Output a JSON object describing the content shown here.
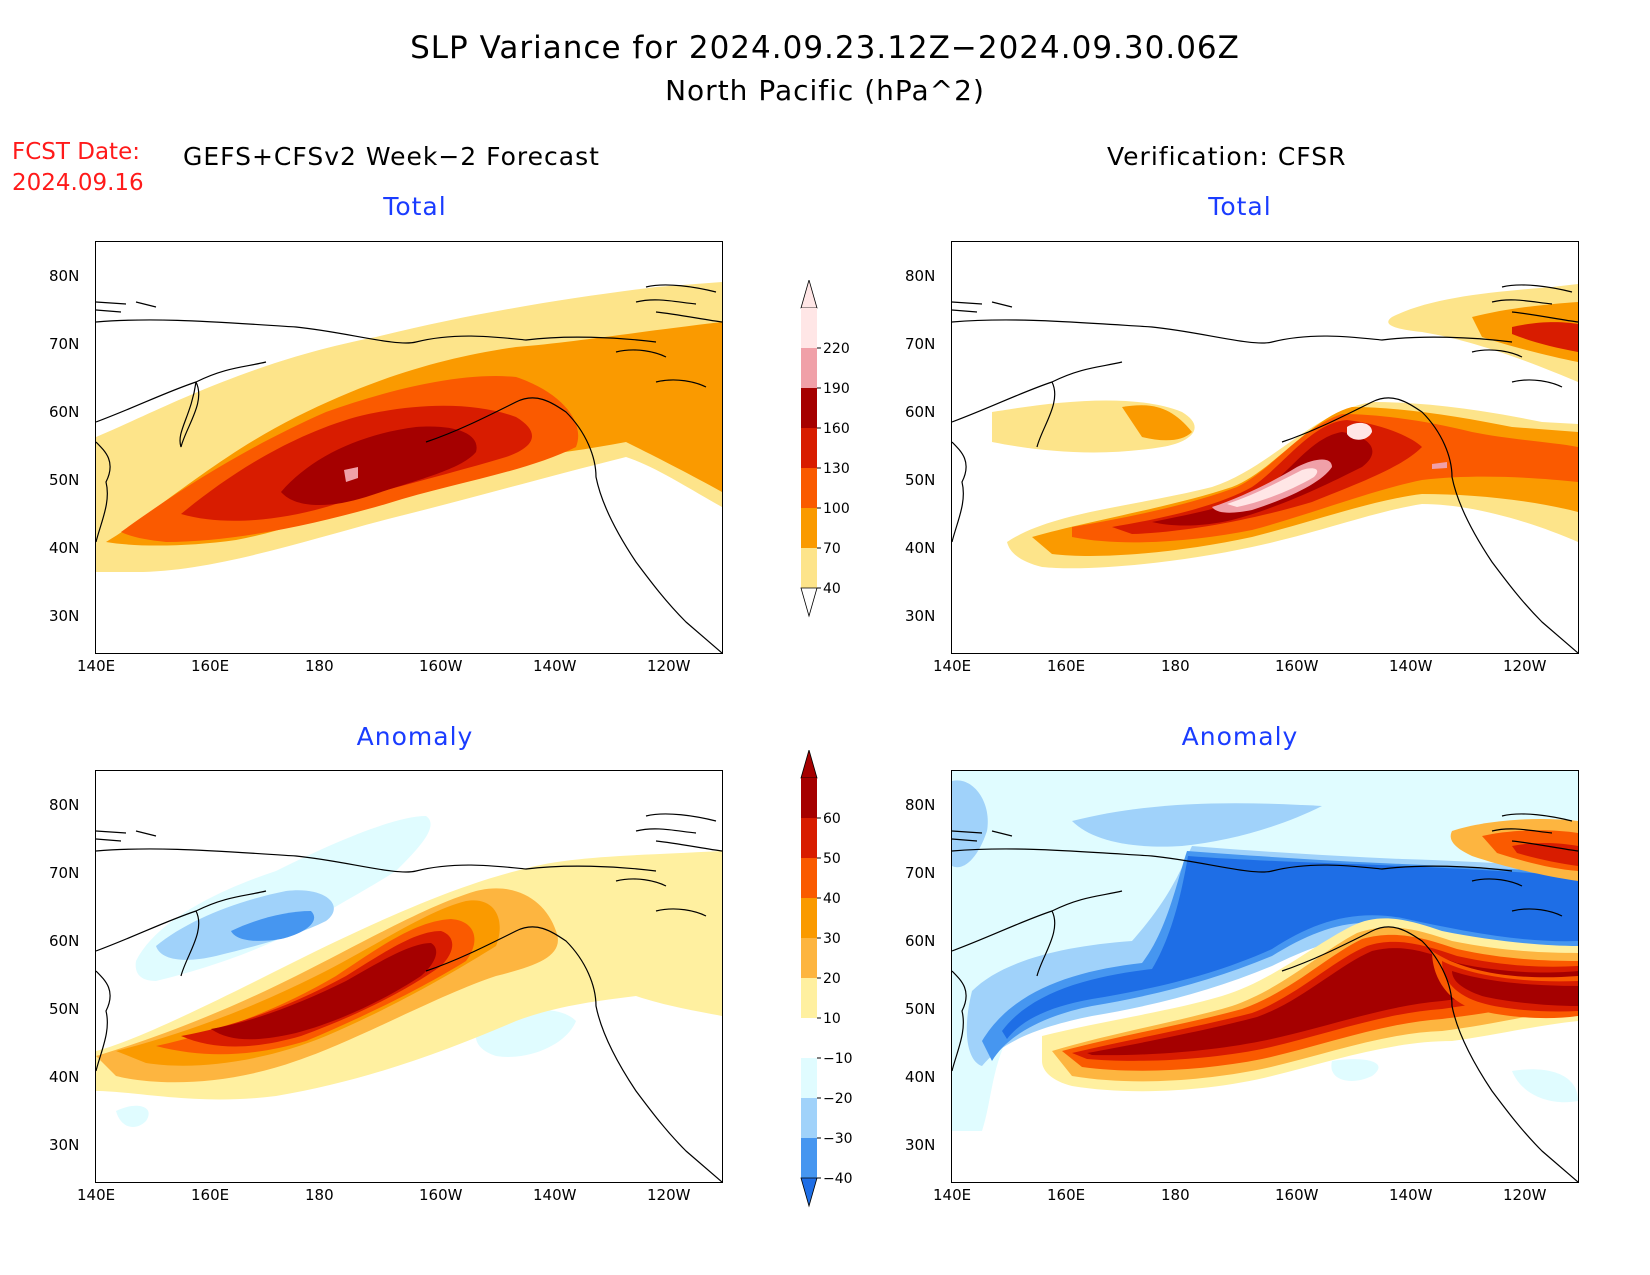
{
  "header": {
    "title_line1": "SLP Variance for 2024.09.23.12Z−2024.09.30.06Z",
    "title_line2": "North Pacific (hPa^2)",
    "fcst_label": "FCST Date:",
    "fcst_date": "2024.09.16",
    "left_column_title": "GEFS+CFSv2 Week−2 Forecast",
    "right_column_title": "Verification: CFSR"
  },
  "panels": {
    "fcst_total_title": "Total",
    "verif_total_title": "Total",
    "fcst_anom_title": "Anomaly",
    "verif_anom_title": "Anomaly"
  },
  "axes": {
    "lon_labels": [
      "140E",
      "160E",
      "180",
      "160W",
      "140W",
      "120W"
    ],
    "lat_labels": [
      "80N",
      "70N",
      "60N",
      "50N",
      "40N",
      "30N"
    ]
  },
  "colorbar_total": {
    "levels": [
      "220",
      "190",
      "160",
      "130",
      "100",
      "70",
      "40"
    ],
    "colors": [
      "#ffe6e6",
      "#f0a0a8",
      "#a50000",
      "#d81c00",
      "#fa5a00",
      "#fa9a00",
      "#fde48a"
    ]
  },
  "colorbar_anomaly": {
    "levels": [
      "60",
      "50",
      "40",
      "30",
      "20",
      "10",
      "−10",
      "−20",
      "−30",
      "−40"
    ],
    "colors": [
      "#a50000",
      "#d81c00",
      "#fa5a00",
      "#fa9a00",
      "#fdb540",
      "#fff0a0",
      "#ffffff",
      "#e0fcff",
      "#a0d2fa",
      "#4696f0",
      "#1e6ee6"
    ]
  },
  "colors": {
    "title_fcst_date": "#ff1a1a",
    "subtitle_blue": "#1a3cff"
  }
}
